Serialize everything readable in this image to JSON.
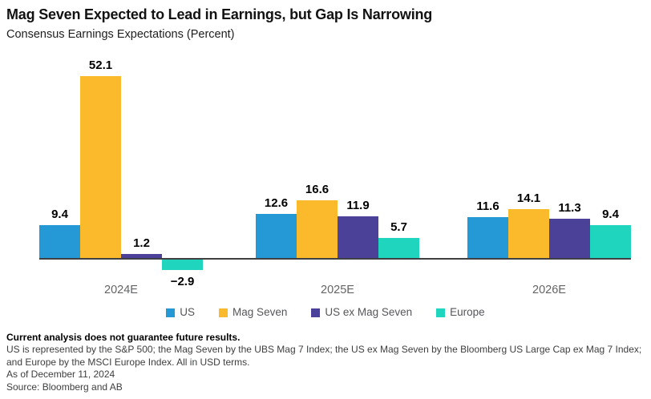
{
  "header": {
    "title": "Mag Seven Expected to Lead in Earnings, but Gap Is Narrowing",
    "subtitle": "Consensus Earnings Expectations (Percent)"
  },
  "chart_data": {
    "type": "bar",
    "title": "Mag Seven Expected to Lead in Earnings, but Gap Is Narrowing",
    "subtitle": "Consensus Earnings Expectations (Percent)",
    "categories": [
      "2024E",
      "2025E",
      "2026E"
    ],
    "series": [
      {
        "name": "US",
        "color": "#2499D6",
        "values": [
          9.4,
          12.6,
          11.6
        ]
      },
      {
        "name": "Mag Seven",
        "color": "#FBB92C",
        "values": [
          52.1,
          16.6,
          14.1
        ]
      },
      {
        "name": "US ex Mag Seven",
        "color": "#4C4198",
        "values": [
          1.2,
          11.9,
          11.3
        ]
      },
      {
        "name": "Europe",
        "color": "#20D5BD",
        "values": [
          -2.9,
          5.7,
          9.4
        ]
      }
    ],
    "xlabel": "",
    "ylabel": "Percent",
    "ylim": [
      -5,
      55
    ],
    "grid": false,
    "value_labels_shown": true,
    "legend_position": "bottom",
    "axis_line_color": "#3f4041"
  },
  "footer": {
    "disclaimer": "Current analysis does not guarantee future results.",
    "description": "US is represented by the S&P 500; the Mag Seven by the UBS Mag 7 Index; the US ex Mag Seven by the Bloomberg US Large Cap ex Mag 7 Index; and Europe by the MSCI Europe Index. All in USD terms.",
    "as_of": "As of December 11, 2024",
    "source": "Source: Bloomberg and AB"
  }
}
